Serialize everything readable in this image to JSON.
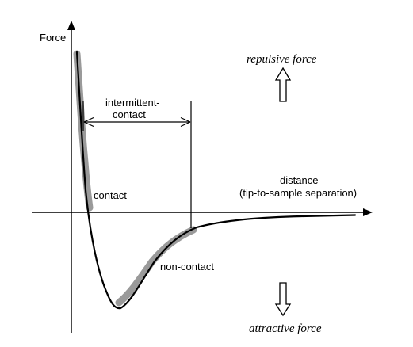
{
  "labels": {
    "y_axis": "Force",
    "x_axis_line1": "distance",
    "x_axis_line2": "(tip-to-sample separation)",
    "intermittent_line1": "intermittent-",
    "intermittent_line2": "contact",
    "contact": "contact",
    "non_contact": "non-contact",
    "repulsive": "repulsive force",
    "attractive": "attractive force"
  },
  "colors": {
    "curve": "#000000",
    "highlight": "#9a9a9a",
    "axes": "#000000"
  }
}
